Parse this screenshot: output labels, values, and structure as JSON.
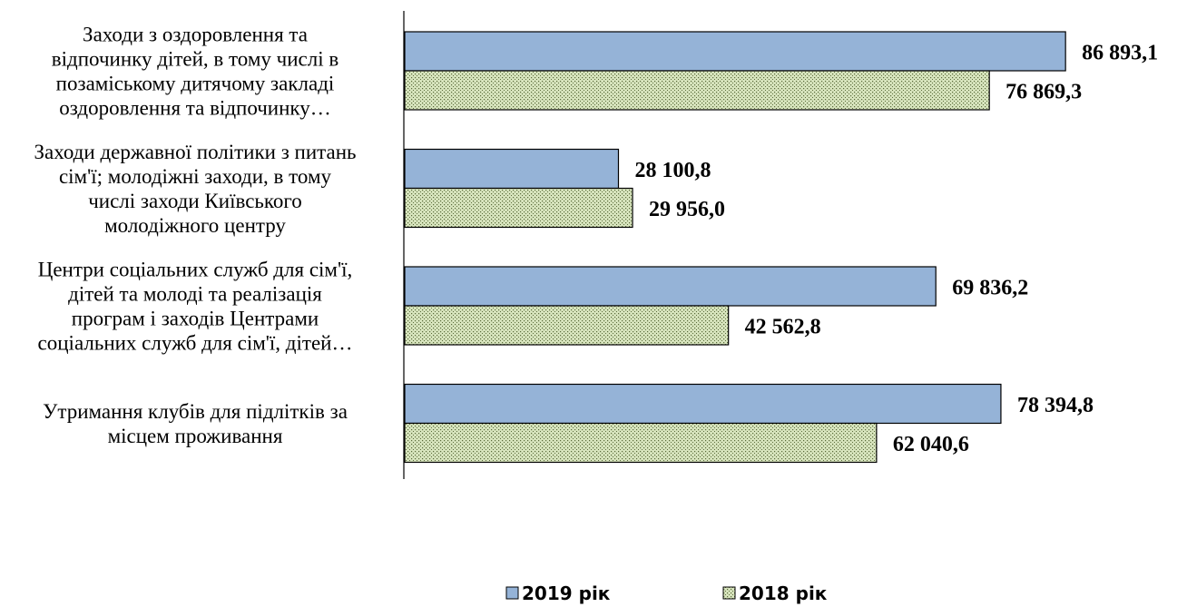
{
  "chart_data": {
    "type": "bar",
    "orientation": "horizontal",
    "categories": [
      [
        "Заходи з оздоровлення та",
        "відпочинку дітей,  в тому числі в",
        "позаміському дитячому закладі",
        "оздоровлення та відпочинку…"
      ],
      [
        "Заходи державної політики з питань",
        "сім'ї; молодіжні заходи, в тому",
        "числі заходи Київського",
        "молодіжного центру"
      ],
      [
        "Центри соціальних служб для сім'ї,",
        "дітей та молоді та реалізація",
        "програм і заходів Центрами",
        "соціальних служб для сім'ї, дітей…"
      ],
      [
        "Утримання клубів для підлітків за",
        "місцем проживання"
      ]
    ],
    "series": [
      {
        "name": "2019 рік",
        "values": [
          86893.1,
          28100.8,
          69836.2,
          78394.8
        ],
        "labels": [
          "86 893,1",
          "28 100,8",
          "69 836,2",
          "78 394,8"
        ],
        "color": "#95B3D7",
        "pattern": "solid"
      },
      {
        "name": "2018 рік",
        "values": [
          76869.3,
          29956.0,
          42562.8,
          62040.6
        ],
        "labels": [
          "76 869,3",
          "29 956,0",
          "42 562,8",
          "62 040,6"
        ],
        "color": "#D7E4BD",
        "pattern": "dotted"
      }
    ],
    "xlim": [
      0,
      100000
    ],
    "xaxis_visible": false,
    "grid": false,
    "legend_position": "bottom"
  }
}
